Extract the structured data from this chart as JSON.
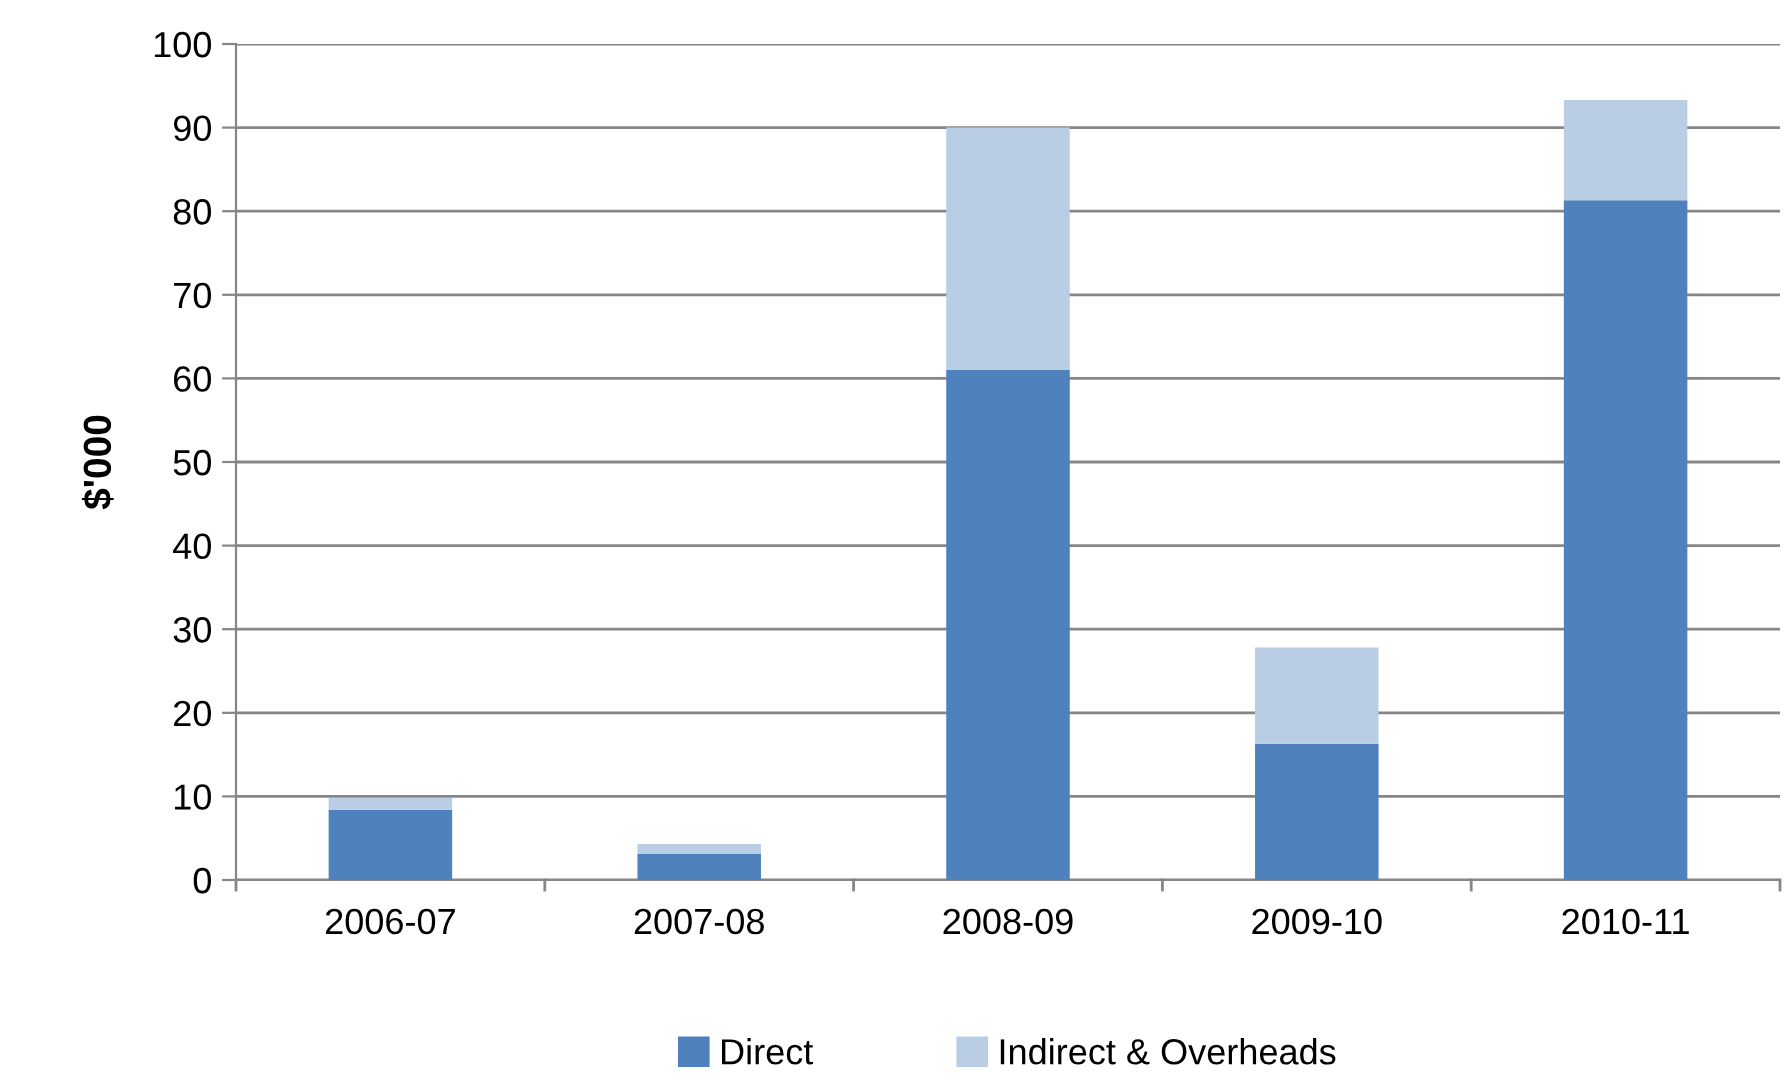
{
  "chart_data": {
    "type": "bar",
    "stacked": true,
    "ylabel": "$'000",
    "categories": [
      "2006-07",
      "2007-08",
      "2008-09",
      "2009-10",
      "2010-11"
    ],
    "series": [
      {
        "name": "Direct",
        "color": "#4f81bd",
        "values": [
          8.4,
          3.1,
          61,
          16.3,
          81.3
        ]
      },
      {
        "name": "Indirect & Overheads",
        "color": "#b9cde5",
        "values": [
          1.4,
          1.2,
          29,
          11.5,
          12
        ]
      }
    ],
    "ylim": [
      0,
      100
    ],
    "yticks": [
      0,
      10,
      20,
      30,
      40,
      50,
      60,
      70,
      80,
      90,
      100
    ],
    "grid": "y",
    "legend": "bottom"
  }
}
